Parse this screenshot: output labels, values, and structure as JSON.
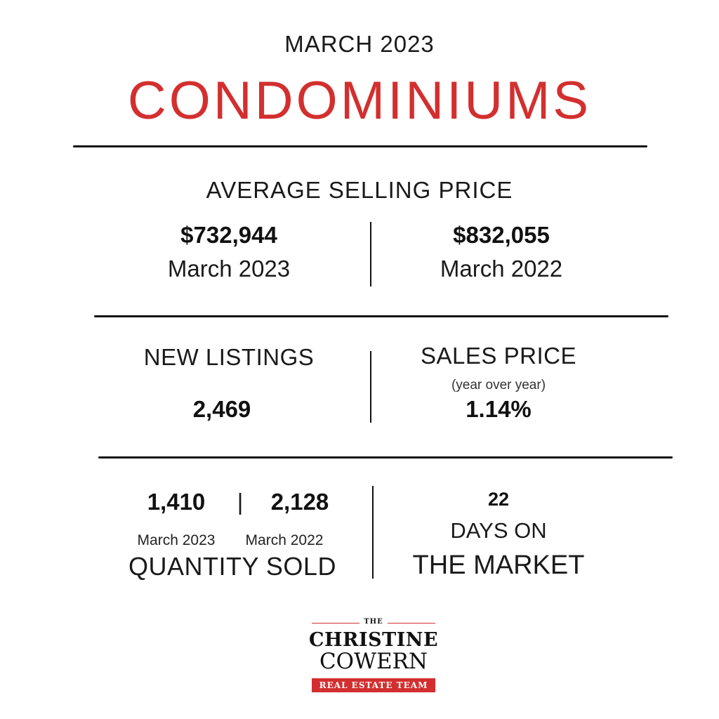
{
  "header": {
    "date": "MARCH 2023",
    "title": "CONDOMINIUMS"
  },
  "average_selling_price": {
    "title": "AVERAGE SELLING PRICE",
    "current": {
      "value": "$732,944",
      "label": "March 2023"
    },
    "previous": {
      "value": "$832,055",
      "label": "March 2022"
    }
  },
  "new_listings": {
    "title": "NEW LISTINGS",
    "value": "2,469"
  },
  "sales_price": {
    "title": "SALES PRICE",
    "subtitle": "(year over year)",
    "value": "1.14%"
  },
  "quantity_sold": {
    "current": {
      "value": "1,410",
      "label": "March 2023"
    },
    "separator": "|",
    "previous": {
      "value": "2,128",
      "label": "March 2022"
    },
    "title": "QUANTITY SOLD"
  },
  "days_on_market": {
    "value": "22",
    "line1": "DAYS ON",
    "line2": "THE MARKET"
  },
  "logo": {
    "the": "THE",
    "name_line1": "CHRISTINE",
    "name_line2": "COWERN",
    "tagline": "REAL ESTATE TEAM"
  },
  "colors": {
    "accent": "#d32f2f",
    "text": "#111111",
    "background": "#ffffff"
  }
}
